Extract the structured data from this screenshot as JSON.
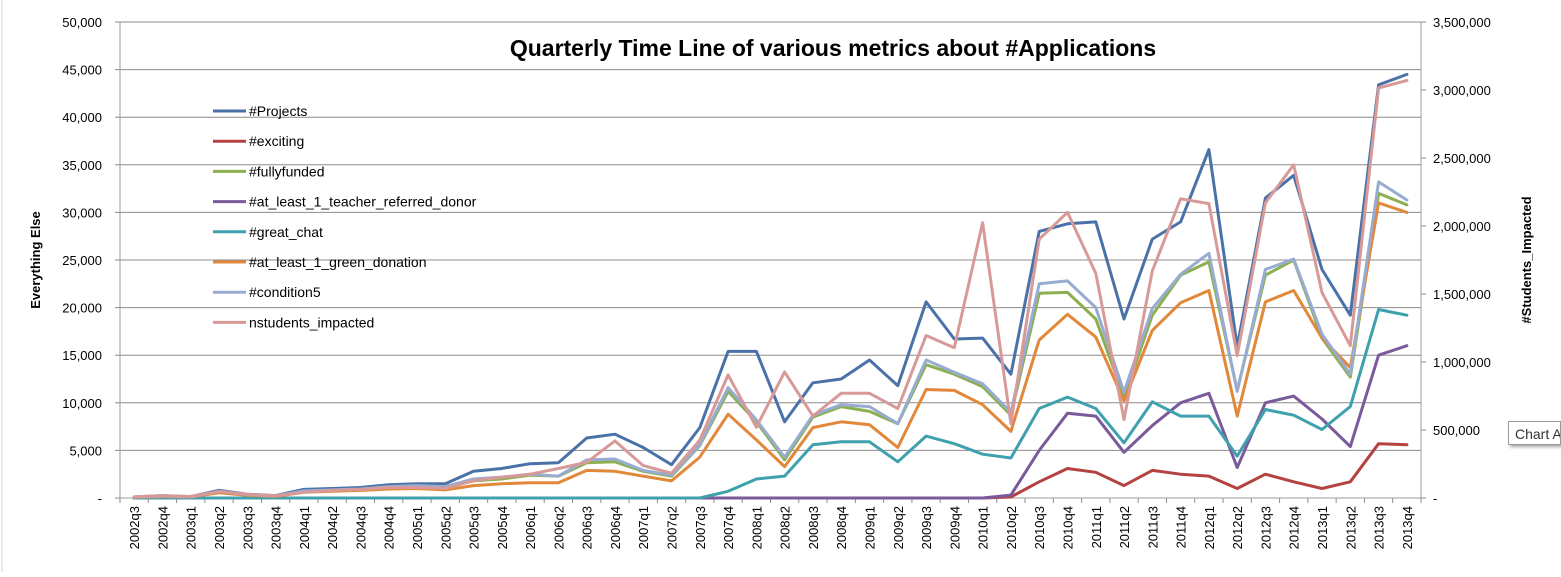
{
  "tooltip": {
    "text": "Chart A"
  },
  "chart_data": {
    "type": "line",
    "title": "Quarterly Time Line of various metrics about #Applications",
    "ylabel": "Everything Else",
    "y2label": "#Students_Impacted",
    "ylim": [
      0,
      50000
    ],
    "y2lim": [
      0,
      3500000
    ],
    "yticks": [
      "-",
      "5,000",
      "10,000",
      "15,000",
      "20,000",
      "25,000",
      "30,000",
      "35,000",
      "40,000",
      "45,000",
      "50,000"
    ],
    "y2ticks": [
      "-",
      "500,000",
      "1,000,000",
      "1,500,000",
      "2,000,000",
      "2,500,000",
      "3,000,000",
      "3,500,000"
    ],
    "grid": true,
    "legend_position": "top-left",
    "categories": [
      "2002q3",
      "2002q4",
      "2003q1",
      "2003q2",
      "2003q3",
      "2003q4",
      "2004q1",
      "2004q2",
      "2004q3",
      "2004q4",
      "2005q1",
      "2005q2",
      "2005q3",
      "2005q4",
      "2006q1",
      "2006q2",
      "2006q3",
      "2006q4",
      "2007q1",
      "2007q2",
      "2007q3",
      "2007q4",
      "2008q1",
      "2008q2",
      "2008q3",
      "2008q4",
      "2009q1",
      "2009q2",
      "2009q3",
      "2009q4",
      "2010q1",
      "2010q2",
      "2010q3",
      "2010q4",
      "2011q1",
      "2011q2",
      "2011q3",
      "2011q4",
      "2012q1",
      "2012q2",
      "2012q3",
      "2012q4",
      "2013q1",
      "2013q2",
      "2013q3",
      "2013q4"
    ],
    "series": [
      {
        "name": "#Projects",
        "color": "#4a72a8",
        "axis": "left",
        "values": [
          100,
          250,
          150,
          800,
          400,
          250,
          900,
          1000,
          1100,
          1400,
          1500,
          1500,
          2800,
          3100,
          3600,
          3700,
          6300,
          6700,
          5300,
          3500,
          7400,
          15400,
          15400,
          8000,
          12100,
          12500,
          14500,
          11800,
          20600,
          16700,
          16800,
          13000,
          28000,
          28800,
          29000,
          18800,
          27200,
          29000,
          36600,
          15900,
          31500,
          33900,
          24000,
          19200,
          43400,
          44500
        ]
      },
      {
        "name": "#exciting",
        "color": "#b34340",
        "axis": "left",
        "values": [
          0,
          0,
          0,
          0,
          0,
          0,
          0,
          0,
          0,
          0,
          0,
          0,
          0,
          0,
          0,
          0,
          0,
          0,
          0,
          0,
          0,
          0,
          0,
          0,
          0,
          0,
          0,
          0,
          0,
          0,
          0,
          100,
          1700,
          3100,
          2700,
          1300,
          2900,
          2500,
          2300,
          1000,
          2500,
          1700,
          1000,
          1700,
          5700,
          5600
        ]
      },
      {
        "name": "#fullyfunded",
        "color": "#8cb050",
        "axis": "left",
        "values": [
          80,
          180,
          110,
          650,
          330,
          200,
          700,
          800,
          900,
          1100,
          1200,
          1100,
          1800,
          2000,
          2400,
          2300,
          3700,
          3800,
          2800,
          2300,
          5500,
          11200,
          8000,
          4000,
          8500,
          9600,
          9100,
          7800,
          14000,
          13000,
          11700,
          8700,
          21500,
          21600,
          18800,
          10600,
          19200,
          23400,
          24800,
          11300,
          23400,
          25000,
          16800,
          12700,
          32000,
          30800
        ]
      },
      {
        "name": "#at_least_1_teacher_referred_donor",
        "color": "#7a5a9a",
        "axis": "left",
        "values": [
          0,
          0,
          0,
          0,
          0,
          0,
          0,
          0,
          0,
          0,
          0,
          0,
          0,
          0,
          0,
          0,
          0,
          0,
          0,
          0,
          0,
          0,
          0,
          0,
          0,
          0,
          0,
          0,
          0,
          0,
          0,
          300,
          5000,
          8900,
          8600,
          4800,
          7600,
          10000,
          11000,
          3200,
          10000,
          10700,
          8300,
          5400,
          15000,
          16000
        ]
      },
      {
        "name": "#great_chat",
        "color": "#3fa0ae",
        "axis": "left",
        "values": [
          0,
          0,
          0,
          0,
          0,
          0,
          0,
          0,
          0,
          0,
          0,
          0,
          0,
          0,
          0,
          0,
          0,
          0,
          0,
          0,
          0,
          700,
          2000,
          2300,
          5600,
          5900,
          5900,
          3800,
          6500,
          5700,
          4600,
          4200,
          9400,
          10600,
          9400,
          5800,
          10100,
          8600,
          8600,
          4400,
          9300,
          8700,
          7200,
          9600,
          19800,
          19200
        ]
      },
      {
        "name": "#at_least_1_green_donation",
        "color": "#e1883a",
        "axis": "left",
        "values": [
          60,
          150,
          100,
          550,
          280,
          170,
          600,
          700,
          800,
          950,
          1000,
          850,
          1300,
          1500,
          1600,
          1600,
          2900,
          2800,
          2300,
          1800,
          4300,
          8800,
          6100,
          3300,
          7400,
          8000,
          7700,
          5300,
          11400,
          11300,
          9800,
          7000,
          16600,
          19300,
          16900,
          10200,
          17600,
          20500,
          21800,
          8600,
          20600,
          21800,
          16800,
          13700,
          31000,
          30000
        ]
      },
      {
        "name": "#condition5",
        "color": "#98acd2",
        "axis": "left",
        "values": [
          90,
          200,
          120,
          700,
          360,
          220,
          750,
          850,
          950,
          1200,
          1300,
          1200,
          2000,
          2200,
          2500,
          2300,
          4000,
          4100,
          2900,
          2400,
          5600,
          11600,
          8200,
          4300,
          8700,
          9800,
          9600,
          7800,
          14500,
          13200,
          12000,
          9000,
          22500,
          22800,
          20000,
          11100,
          19900,
          23500,
          25700,
          11200,
          24000,
          25100,
          17200,
          13000,
          33200,
          31300
        ]
      },
      {
        "name": "nstudents_impacted",
        "color": "#d89a98",
        "axis": "right",
        "values": [
          9000,
          16000,
          11000,
          48000,
          27000,
          16000,
          43000,
          56000,
          63000,
          77000,
          77000,
          70000,
          128000,
          152000,
          175000,
          217000,
          262000,
          420000,
          238000,
          182000,
          426000,
          905000,
          520000,
          927000,
          603000,
          770000,
          770000,
          658000,
          1195000,
          1105000,
          2024000,
          546000,
          1903000,
          2100000,
          1652000,
          577000,
          1670000,
          2200000,
          2165000,
          1047000,
          2170000,
          2450000,
          1510000,
          1120000,
          3015000,
          3070000
        ]
      }
    ]
  }
}
